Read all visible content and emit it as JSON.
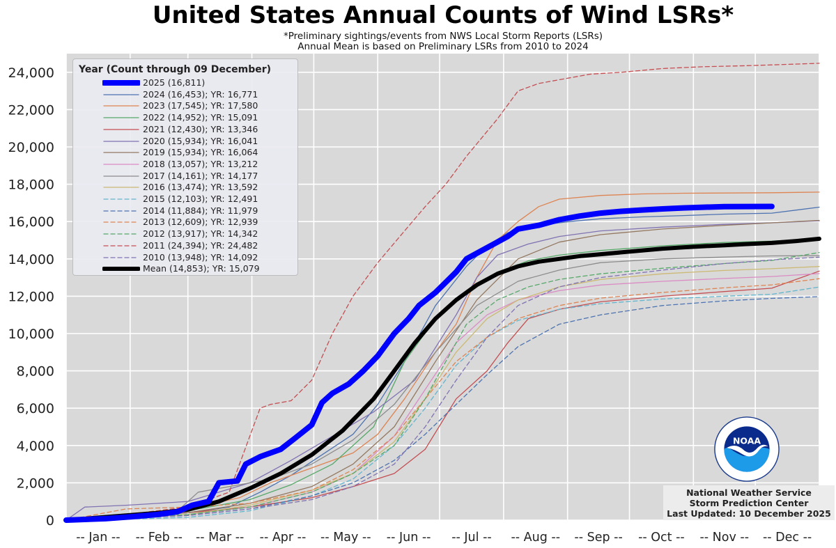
{
  "chart_data": {
    "type": "line",
    "title": "United States Annual Counts of Wind LSRs*",
    "subtitle_lines": [
      "*Preliminary sightings/events from NWS Local Storm Reports (LSRs)",
      "Annual Mean is based on Preliminary LSRs from 2010 to 2024"
    ],
    "legend_title": "Year (Count through 09 December)",
    "legend_placement": "top-left",
    "grid": true,
    "xlabel": "",
    "ylabel": "",
    "x_unit": "day of year",
    "xlim": [
      1,
      366
    ],
    "ylim": [
      0,
      25000
    ],
    "y_ticks": [
      0,
      2000,
      4000,
      6000,
      8000,
      10000,
      12000,
      14000,
      16000,
      18000,
      20000,
      22000,
      24000
    ],
    "y_tick_labels": [
      "0",
      "2,000",
      "4,000",
      "6,000",
      "8,000",
      "10,000",
      "12,000",
      "14,000",
      "16,000",
      "18,000",
      "20,000",
      "22,000",
      "24,000"
    ],
    "x_month_boundaries": [
      1,
      32,
      60,
      91,
      121,
      152,
      182,
      213,
      244,
      274,
      305,
      335,
      366
    ],
    "x_tick_labels": [
      "-- Jan --",
      "-- Feb --",
      "-- Mar --",
      "-- Apr --",
      "-- May --",
      "-- Jun --",
      "-- Jul --",
      "-- Aug --",
      "-- Sep --",
      "-- Oct --",
      "-- Nov --",
      "-- Dec --"
    ],
    "series": [
      {
        "name": "2025 (16,811)",
        "color": "#0000ff",
        "width": 8,
        "dash": "",
        "x": [
          1,
          20,
          32,
          45,
          55,
          62,
          70,
          75,
          84,
          88,
          95,
          105,
          112,
          120,
          125,
          130,
          138,
          145,
          152,
          160,
          167,
          172,
          180,
          190,
          195,
          205,
          215,
          220,
          230,
          240,
          250,
          260,
          270,
          280,
          290,
          300,
          310,
          320,
          343
        ],
        "y": [
          0,
          80,
          180,
          300,
          450,
          800,
          1000,
          2000,
          2100,
          3000,
          3400,
          3800,
          4400,
          5100,
          6300,
          6800,
          7300,
          8000,
          8800,
          10000,
          10800,
          11500,
          12200,
          13300,
          14000,
          14600,
          15200,
          15600,
          15800,
          16100,
          16300,
          16450,
          16550,
          16620,
          16680,
          16730,
          16770,
          16800,
          16811
        ]
      },
      {
        "name": "2024 (16,453); YR: 16,771",
        "color": "#4c72b0",
        "width": 1.3,
        "dash": "",
        "x": [
          1,
          30,
          60,
          80,
          95,
          110,
          125,
          140,
          152,
          165,
          180,
          195,
          205,
          215,
          230,
          245,
          260,
          280,
          300,
          320,
          343,
          366
        ],
        "y": [
          0,
          200,
          400,
          700,
          1500,
          2400,
          3500,
          4600,
          6200,
          8500,
          11500,
          13600,
          14700,
          15400,
          15800,
          16000,
          16150,
          16250,
          16320,
          16400,
          16453,
          16771
        ]
      },
      {
        "name": "2023 (17,545); YR: 17,580",
        "color": "#dd8452",
        "width": 1.3,
        "dash": "",
        "x": [
          1,
          30,
          60,
          85,
          100,
          120,
          140,
          152,
          165,
          180,
          190,
          200,
          210,
          220,
          230,
          240,
          260,
          280,
          300,
          343,
          366
        ],
        "y": [
          0,
          250,
          600,
          1200,
          2000,
          2800,
          3600,
          4600,
          6500,
          9000,
          10500,
          13000,
          15000,
          16000,
          16800,
          17200,
          17400,
          17480,
          17520,
          17545,
          17580
        ]
      },
      {
        "name": "2022 (14,952); YR: 15,091",
        "color": "#55a868",
        "width": 1.3,
        "dash": "",
        "x": [
          1,
          30,
          60,
          90,
          110,
          130,
          150,
          165,
          180,
          195,
          210,
          225,
          240,
          260,
          290,
          320,
          343,
          366
        ],
        "y": [
          0,
          150,
          500,
          1100,
          1900,
          3000,
          5000,
          8500,
          10800,
          12300,
          13300,
          13900,
          14200,
          14450,
          14700,
          14880,
          14952,
          15091
        ]
      },
      {
        "name": "2021 (12,430); YR: 13,346",
        "color": "#c44e52",
        "width": 1.3,
        "dash": "",
        "x": [
          1,
          30,
          60,
          90,
          120,
          140,
          160,
          175,
          190,
          205,
          215,
          225,
          240,
          260,
          290,
          320,
          343,
          366
        ],
        "y": [
          0,
          200,
          400,
          700,
          1200,
          1800,
          2500,
          3800,
          6500,
          8000,
          9500,
          10800,
          11300,
          11700,
          12000,
          12250,
          12430,
          13346
        ]
      },
      {
        "name": "2020 (15,934); YR: 16,041",
        "color": "#8172b2",
        "width": 1.3,
        "dash": "",
        "x": [
          1,
          10,
          30,
          60,
          90,
          110,
          130,
          150,
          170,
          190,
          200,
          210,
          225,
          240,
          260,
          290,
          320,
          343,
          366
        ],
        "y": [
          0,
          700,
          800,
          1000,
          2000,
          3200,
          4500,
          5800,
          7500,
          11000,
          13000,
          14200,
          14800,
          15200,
          15500,
          15700,
          15850,
          15934,
          16041
        ]
      },
      {
        "name": "2019 (15,934); YR: 16,064",
        "color": "#937860",
        "width": 1.3,
        "dash": "",
        "x": [
          1,
          30,
          60,
          90,
          120,
          140,
          160,
          180,
          200,
          220,
          240,
          260,
          290,
          320,
          343,
          366
        ],
        "y": [
          0,
          150,
          400,
          900,
          1800,
          3000,
          5000,
          8500,
          11800,
          14000,
          14900,
          15300,
          15600,
          15800,
          15934,
          16064
        ]
      },
      {
        "name": "2018 (13,057); YR: 13,212",
        "color": "#da8bc3",
        "width": 1.3,
        "dash": "",
        "x": [
          1,
          30,
          60,
          90,
          120,
          140,
          160,
          175,
          190,
          205,
          220,
          240,
          260,
          290,
          320,
          343,
          366
        ],
        "y": [
          0,
          100,
          300,
          700,
          1500,
          2500,
          4500,
          7000,
          9500,
          11000,
          11800,
          12300,
          12600,
          12800,
          12950,
          13057,
          13212
        ]
      },
      {
        "name": "2017 (14,161); YR: 14,177",
        "color": "#8c8c8c",
        "width": 1.3,
        "dash": "",
        "x": [
          1,
          30,
          55,
          65,
          80,
          100,
          120,
          140,
          160,
          180,
          200,
          220,
          240,
          260,
          290,
          320,
          343,
          366
        ],
        "y": [
          0,
          200,
          500,
          1500,
          1800,
          2200,
          3000,
          4300,
          6200,
          9000,
          11500,
          12800,
          13400,
          13800,
          14000,
          14100,
          14161,
          14177
        ]
      },
      {
        "name": "2016 (13,474); YR: 13,592",
        "color": "#ccb974",
        "width": 1.3,
        "dash": "",
        "x": [
          1,
          30,
          60,
          90,
          120,
          140,
          160,
          175,
          190,
          205,
          220,
          240,
          260,
          290,
          320,
          343,
          366
        ],
        "y": [
          0,
          150,
          300,
          800,
          1600,
          2500,
          4200,
          6500,
          9000,
          10800,
          11800,
          12500,
          12900,
          13200,
          13380,
          13474,
          13592
        ]
      },
      {
        "name": "2015 (12,103); YR: 12,491",
        "color": "#64b5cd",
        "width": 1.3,
        "dash": "6,4",
        "x": [
          1,
          30,
          60,
          90,
          120,
          140,
          160,
          175,
          190,
          205,
          220,
          240,
          260,
          290,
          320,
          343,
          366
        ],
        "y": [
          0,
          50,
          150,
          500,
          1300,
          2200,
          4000,
          6000,
          8300,
          9800,
          10700,
          11300,
          11600,
          11850,
          12000,
          12103,
          12491
        ]
      },
      {
        "name": "2014 (11,884); YR: 11,979",
        "color": "#4c72b0",
        "width": 1.3,
        "dash": "6,4",
        "x": [
          1,
          30,
          60,
          90,
          120,
          140,
          160,
          175,
          190,
          205,
          220,
          240,
          260,
          290,
          320,
          343,
          366
        ],
        "y": [
          0,
          100,
          250,
          600,
          1300,
          2000,
          3200,
          4600,
          6200,
          7800,
          9300,
          10500,
          11000,
          11500,
          11750,
          11884,
          11979
        ]
      },
      {
        "name": "2013 (12,609); YR: 12,939",
        "color": "#dd8452",
        "width": 1.3,
        "dash": "6,4",
        "x": [
          1,
          30,
          60,
          90,
          120,
          140,
          160,
          175,
          190,
          205,
          220,
          240,
          260,
          290,
          320,
          343,
          366
        ],
        "y": [
          0,
          600,
          700,
          900,
          1600,
          2700,
          4500,
          6500,
          8500,
          9800,
          10800,
          11500,
          11900,
          12200,
          12450,
          12609,
          12939
        ]
      },
      {
        "name": "2012 (13,917); YR: 14,342",
        "color": "#55a868",
        "width": 1.3,
        "dash": "6,4",
        "x": [
          1,
          30,
          60,
          90,
          120,
          140,
          160,
          175,
          185,
          195,
          210,
          225,
          240,
          260,
          290,
          320,
          343,
          366
        ],
        "y": [
          0,
          100,
          300,
          700,
          1500,
          2500,
          4000,
          6500,
          8500,
          10500,
          11800,
          12500,
          12900,
          13200,
          13500,
          13750,
          13917,
          14342
        ]
      },
      {
        "name": "2011 (24,394); YR: 24,482",
        "color": "#c44e52",
        "width": 1.3,
        "dash": "6,4",
        "x": [
          1,
          30,
          60,
          80,
          90,
          95,
          100,
          110,
          120,
          130,
          140,
          152,
          165,
          175,
          185,
          195,
          210,
          220,
          230,
          240,
          255,
          270,
          290,
          310,
          330,
          343,
          366
        ],
        "y": [
          0,
          300,
          700,
          1500,
          4500,
          6000,
          6200,
          6400,
          7500,
          10000,
          12000,
          13800,
          15500,
          16800,
          18000,
          19500,
          21500,
          23000,
          23400,
          23600,
          23900,
          24000,
          24200,
          24300,
          24350,
          24394,
          24482
        ]
      },
      {
        "name": "2010 (13,948); YR: 14,092",
        "color": "#8172b2",
        "width": 1.3,
        "dash": "6,4",
        "x": [
          1,
          30,
          60,
          90,
          120,
          140,
          160,
          175,
          190,
          205,
          220,
          240,
          260,
          290,
          320,
          343,
          366
        ],
        "y": [
          0,
          100,
          250,
          600,
          1100,
          1800,
          3000,
          5000,
          7500,
          9800,
          11500,
          12500,
          13000,
          13400,
          13750,
          13948,
          14092
        ]
      },
      {
        "name": "Mean (14,853); YR: 15,079",
        "color": "#000000",
        "width": 6,
        "dash": "",
        "x": [
          1,
          15,
          30,
          45,
          60,
          75,
          90,
          105,
          120,
          135,
          150,
          160,
          170,
          180,
          190,
          200,
          210,
          220,
          230,
          240,
          250,
          260,
          270,
          280,
          290,
          300,
          310,
          320,
          330,
          343,
          355,
          366
        ],
        "y": [
          0,
          120,
          250,
          380,
          560,
          1000,
          1700,
          2500,
          3500,
          4800,
          6500,
          8000,
          9500,
          10800,
          11800,
          12600,
          13200,
          13600,
          13850,
          14000,
          14150,
          14250,
          14350,
          14450,
          14550,
          14620,
          14680,
          14730,
          14790,
          14853,
          14960,
          15079
        ]
      }
    ]
  },
  "credit": {
    "line1": "National Weather Service",
    "line2": "Storm Prediction Center",
    "line3": "Last Updated: 10 December 2025"
  },
  "logo": {
    "text": "NOAA",
    "icon": "noaa-logo"
  }
}
